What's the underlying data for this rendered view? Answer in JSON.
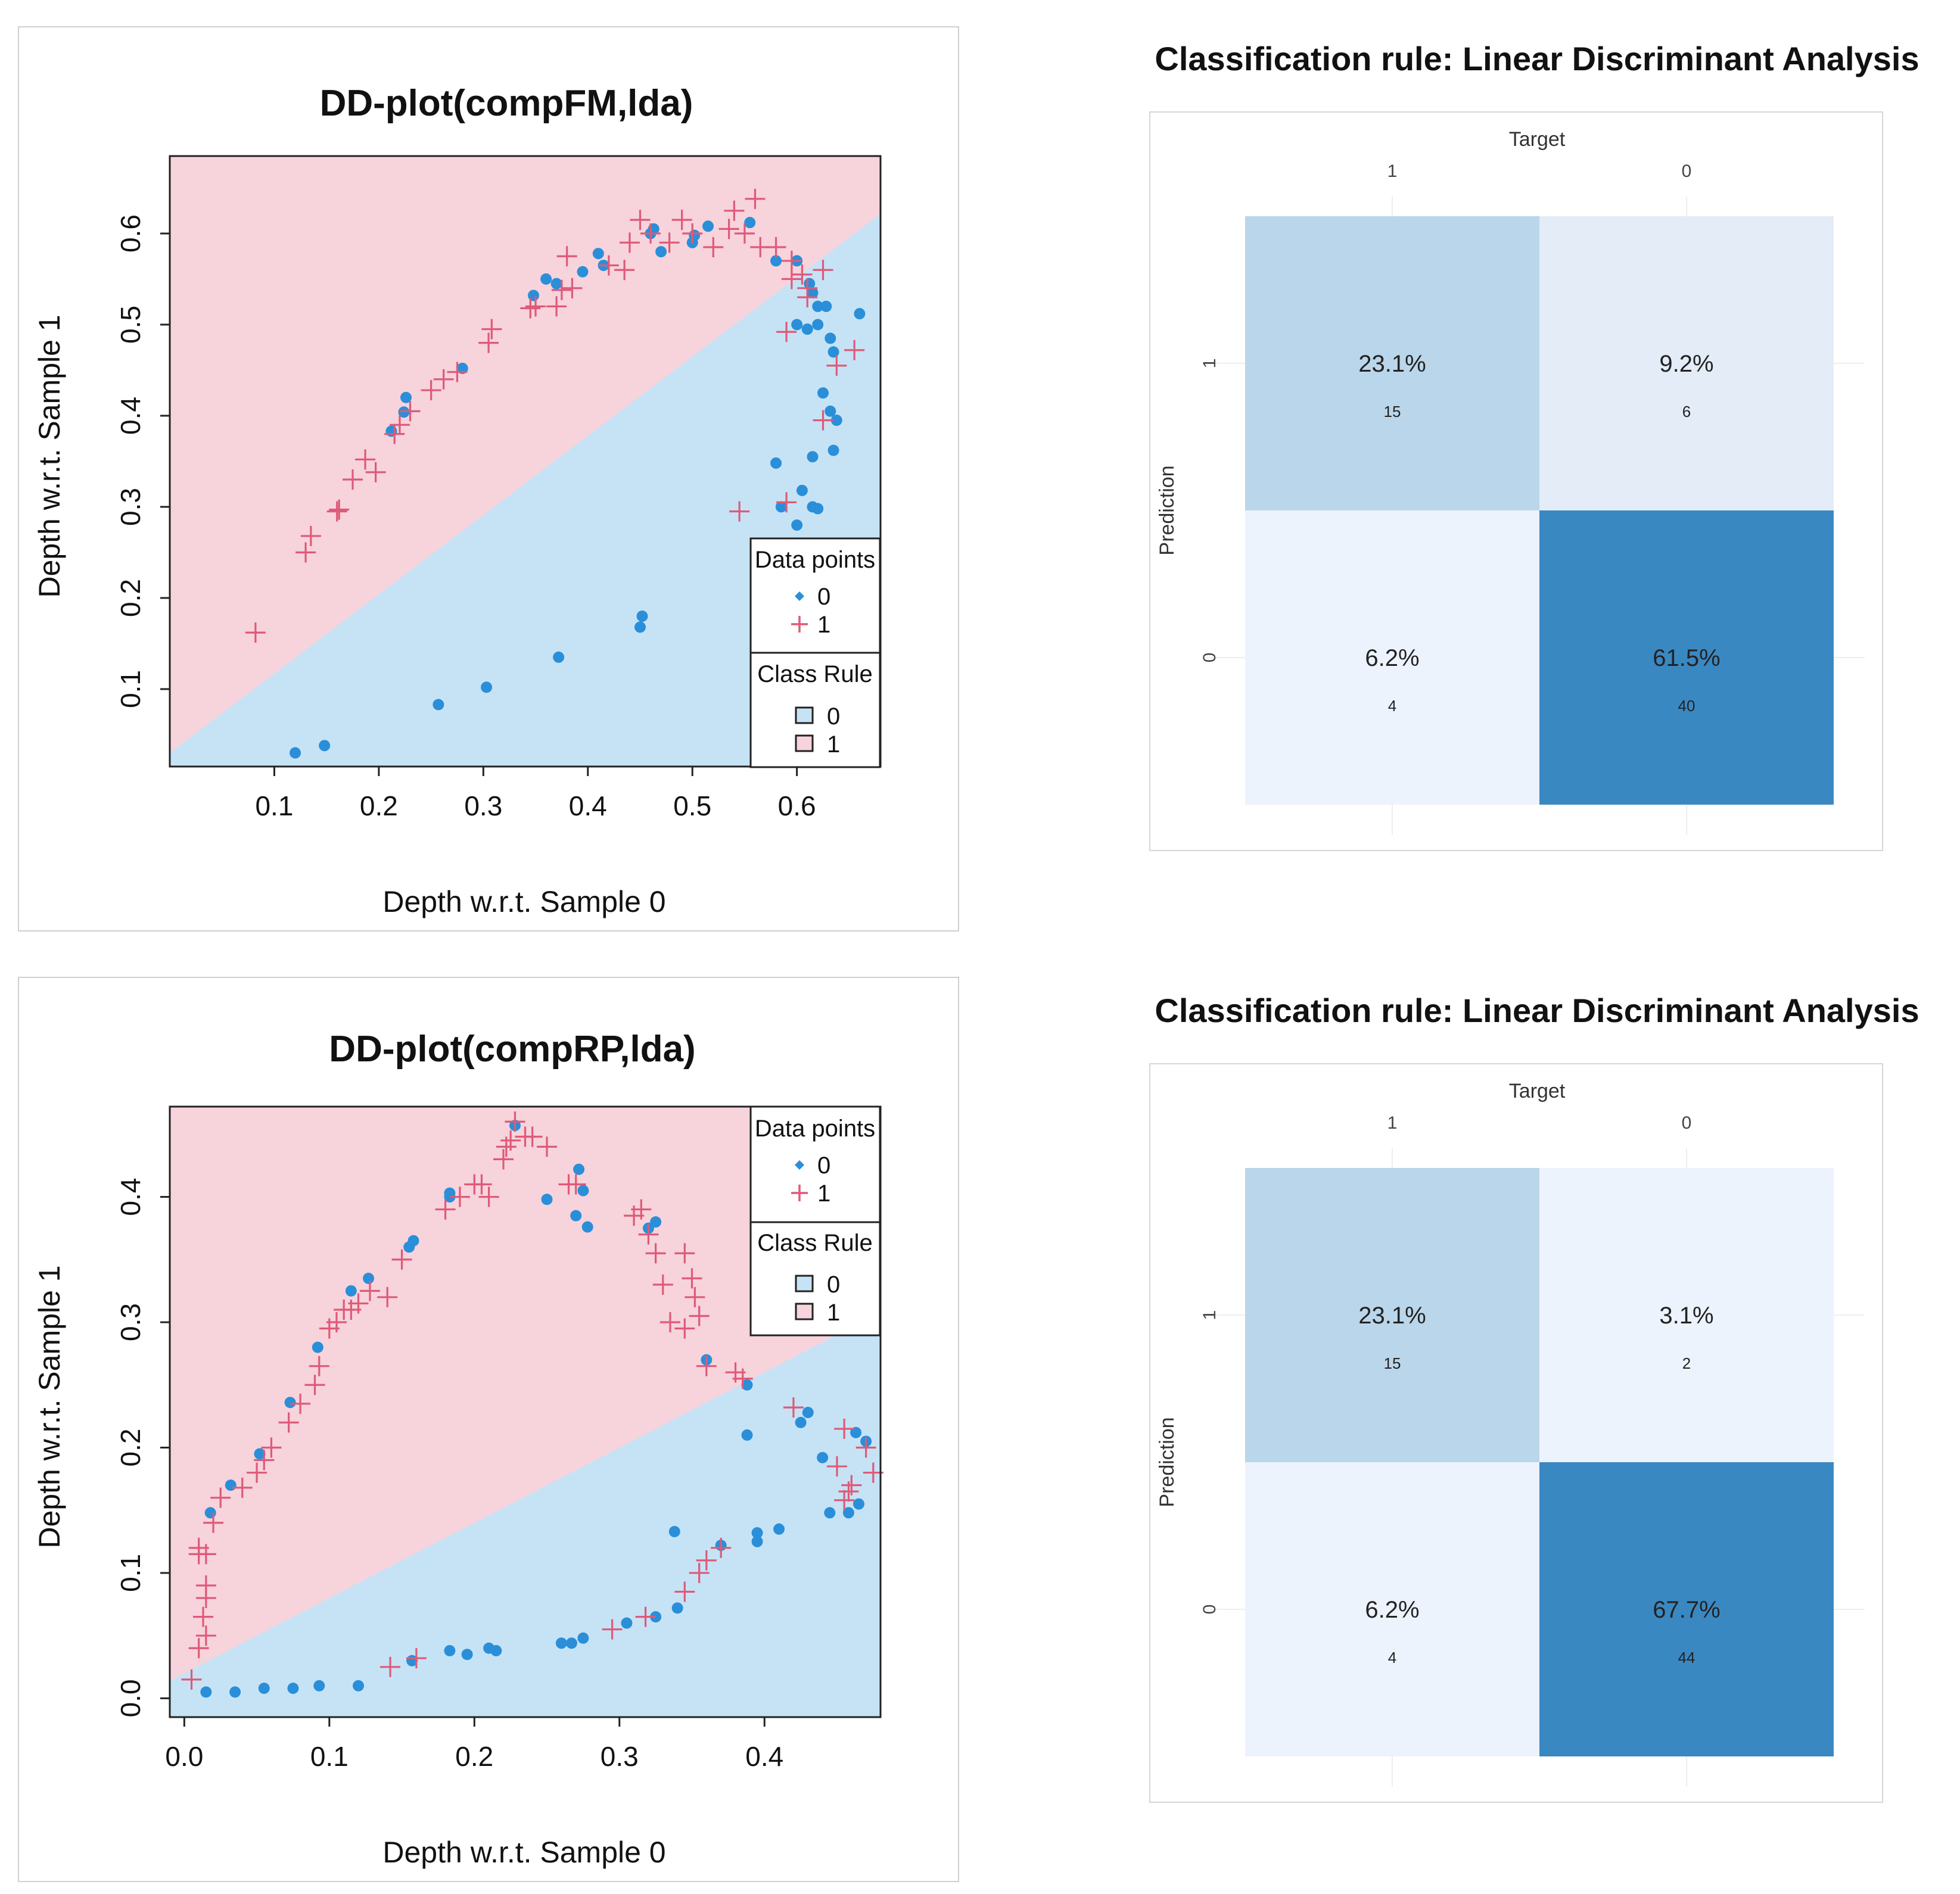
{
  "chart_data": [
    {
      "type": "scatter",
      "title": "DD-plot(compFM,lda)",
      "xlabel": "Depth w.r.t. Sample 0",
      "ylabel": "Depth w.r.t. Sample 1",
      "xlim": [
        0.0,
        0.68
      ],
      "ylim": [
        0.015,
        0.685
      ],
      "xticks": [
        "0.1",
        "0.2",
        "0.3",
        "0.4",
        "0.5",
        "0.6"
      ],
      "xtick_values": [
        0.1,
        0.2,
        0.3,
        0.4,
        0.5,
        0.6
      ],
      "yticks": [
        "0.1",
        "0.2",
        "0.3",
        "0.4",
        "0.5",
        "0.6"
      ],
      "ytick_values": [
        0.1,
        0.2,
        0.3,
        0.4,
        0.5,
        0.6
      ],
      "boundary": {
        "intercept": 0.03,
        "slope": 0.87
      },
      "colors": {
        "region0": "#c6e3f6",
        "region1": "#f7d3dc",
        "points0": "#2a8fd8",
        "points1": "#de5a78"
      },
      "legend": {
        "position": "bottom-right",
        "data_title": "Data points",
        "data_items": [
          "0",
          "1"
        ],
        "rule_title": "Class Rule",
        "rule_items": [
          "0",
          "1"
        ]
      },
      "series": [
        {
          "name": "0",
          "marker": "dot",
          "points": [
            [
              0.12,
              0.03
            ],
            [
              0.148,
              0.038
            ],
            [
              0.257,
              0.083
            ],
            [
              0.303,
              0.102
            ],
            [
              0.372,
              0.135
            ],
            [
              0.45,
              0.168
            ],
            [
              0.452,
              0.18
            ],
            [
              0.212,
              0.383
            ],
            [
              0.224,
              0.404
            ],
            [
              0.226,
              0.42
            ],
            [
              0.28,
              0.452
            ],
            [
              0.348,
              0.532
            ],
            [
              0.36,
              0.55
            ],
            [
              0.37,
              0.545
            ],
            [
              0.395,
              0.558
            ],
            [
              0.41,
              0.578
            ],
            [
              0.415,
              0.565
            ],
            [
              0.46,
              0.6
            ],
            [
              0.463,
              0.605
            ],
            [
              0.47,
              0.58
            ],
            [
              0.5,
              0.59
            ],
            [
              0.502,
              0.598
            ],
            [
              0.515,
              0.608
            ],
            [
              0.555,
              0.612
            ],
            [
              0.58,
              0.57
            ],
            [
              0.6,
              0.57
            ],
            [
              0.6,
              0.5
            ],
            [
              0.61,
              0.495
            ],
            [
              0.612,
              0.545
            ],
            [
              0.615,
              0.535
            ],
            [
              0.62,
              0.52
            ],
            [
              0.62,
              0.5
            ],
            [
              0.625,
              0.425
            ],
            [
              0.628,
              0.52
            ],
            [
              0.632,
              0.485
            ],
            [
              0.635,
              0.47
            ],
            [
              0.632,
              0.405
            ],
            [
              0.638,
              0.395
            ],
            [
              0.635,
              0.362
            ],
            [
              0.615,
              0.355
            ],
            [
              0.58,
              0.348
            ],
            [
              0.605,
              0.318
            ],
            [
              0.585,
              0.3
            ],
            [
              0.615,
              0.3
            ],
            [
              0.62,
              0.298
            ],
            [
              0.6,
              0.28
            ],
            [
              0.66,
              0.512
            ]
          ]
        },
        {
          "name": "1",
          "marker": "plus",
          "points": [
            [
              0.082,
              0.162
            ],
            [
              0.13,
              0.25
            ],
            [
              0.135,
              0.268
            ],
            [
              0.16,
              0.295
            ],
            [
              0.162,
              0.297
            ],
            [
              0.175,
              0.33
            ],
            [
              0.187,
              0.352
            ],
            [
              0.197,
              0.338
            ],
            [
              0.215,
              0.38
            ],
            [
              0.22,
              0.39
            ],
            [
              0.23,
              0.405
            ],
            [
              0.25,
              0.428
            ],
            [
              0.262,
              0.44
            ],
            [
              0.275,
              0.448
            ],
            [
              0.305,
              0.48
            ],
            [
              0.308,
              0.495
            ],
            [
              0.345,
              0.518
            ],
            [
              0.35,
              0.52
            ],
            [
              0.37,
              0.52
            ],
            [
              0.375,
              0.538
            ],
            [
              0.38,
              0.575
            ],
            [
              0.385,
              0.54
            ],
            [
              0.42,
              0.565
            ],
            [
              0.435,
              0.56
            ],
            [
              0.44,
              0.59
            ],
            [
              0.45,
              0.615
            ],
            [
              0.46,
              0.6
            ],
            [
              0.478,
              0.59
            ],
            [
              0.49,
              0.615
            ],
            [
              0.5,
              0.6
            ],
            [
              0.52,
              0.585
            ],
            [
              0.535,
              0.605
            ],
            [
              0.54,
              0.625
            ],
            [
              0.55,
              0.6
            ],
            [
              0.56,
              0.638
            ],
            [
              0.565,
              0.585
            ],
            [
              0.58,
              0.585
            ],
            [
              0.595,
              0.57
            ],
            [
              0.605,
              0.555
            ],
            [
              0.61,
              0.54
            ],
            [
              0.595,
              0.55
            ],
            [
              0.61,
              0.53
            ],
            [
              0.625,
              0.56
            ],
            [
              0.59,
              0.492
            ],
            [
              0.625,
              0.395
            ],
            [
              0.638,
              0.455
            ],
            [
              0.655,
              0.472
            ],
            [
              0.545,
              0.295
            ],
            [
              0.59,
              0.305
            ]
          ]
        }
      ]
    },
    {
      "type": "table",
      "title": "Classification rule: Linear Discriminant Analysis",
      "col_header": "Target",
      "row_header": "Prediction",
      "col_labels": [
        "1",
        "0"
      ],
      "row_labels": [
        "1",
        "0"
      ],
      "cells": [
        [
          {
            "pct": "23.1%",
            "count": "15",
            "color": "#bad6ea"
          },
          {
            "pct": "9.2%",
            "count": "6",
            "color": "#e4ecf8"
          }
        ],
        [
          {
            "pct": "6.2%",
            "count": "4",
            "color": "#edf3fc"
          },
          {
            "pct": "61.5%",
            "count": "40",
            "color": "#3a88c2"
          }
        ]
      ]
    },
    {
      "type": "scatter",
      "title": "DD-plot(compRP,lda)",
      "xlabel": "Depth w.r.t. Sample 0",
      "ylabel": "Depth w.r.t. Sample 1",
      "xlim": [
        -0.01,
        0.48
      ],
      "ylim": [
        -0.015,
        0.472
      ],
      "xticks": [
        "0.0",
        "0.1",
        "0.2",
        "0.3",
        "0.4"
      ],
      "xtick_values": [
        0.0,
        0.1,
        0.2,
        0.3,
        0.4
      ],
      "yticks": [
        "0.0",
        "0.1",
        "0.2",
        "0.3",
        "0.4"
      ],
      "ytick_values": [
        0.0,
        0.1,
        0.2,
        0.3,
        0.4
      ],
      "boundary": {
        "intercept": 0.02,
        "slope": 0.6
      },
      "colors": {
        "region0": "#c6e3f6",
        "region1": "#f7d3dc",
        "points0": "#2a8fd8",
        "points1": "#de5a78"
      },
      "legend": {
        "position": "top-right",
        "data_title": "Data points",
        "data_items": [
          "0",
          "1"
        ],
        "rule_title": "Class Rule",
        "rule_items": [
          "0",
          "1"
        ]
      },
      "series": [
        {
          "name": "0",
          "marker": "dot",
          "points": [
            [
              0.015,
              0.005
            ],
            [
              0.035,
              0.005
            ],
            [
              0.055,
              0.008
            ],
            [
              0.075,
              0.008
            ],
            [
              0.093,
              0.01
            ],
            [
              0.12,
              0.01
            ],
            [
              0.157,
              0.03
            ],
            [
              0.183,
              0.038
            ],
            [
              0.195,
              0.035
            ],
            [
              0.21,
              0.04
            ],
            [
              0.215,
              0.038
            ],
            [
              0.26,
              0.044
            ],
            [
              0.267,
              0.044
            ],
            [
              0.275,
              0.048
            ],
            [
              0.305,
              0.06
            ],
            [
              0.325,
              0.065
            ],
            [
              0.34,
              0.072
            ],
            [
              0.37,
              0.122
            ],
            [
              0.395,
              0.125
            ],
            [
              0.41,
              0.135
            ],
            [
              0.338,
              0.133
            ],
            [
              0.395,
              0.132
            ],
            [
              0.445,
              0.148
            ],
            [
              0.458,
              0.148
            ],
            [
              0.465,
              0.155
            ],
            [
              0.44,
              0.192
            ],
            [
              0.388,
              0.21
            ],
            [
              0.425,
              0.22
            ],
            [
              0.43,
              0.228
            ],
            [
              0.388,
              0.25
            ],
            [
              0.36,
              0.27
            ],
            [
              0.47,
              0.205
            ],
            [
              0.463,
              0.212
            ],
            [
              0.018,
              0.148
            ],
            [
              0.032,
              0.17
            ],
            [
              0.052,
              0.195
            ],
            [
              0.073,
              0.236
            ],
            [
              0.092,
              0.28
            ],
            [
              0.115,
              0.325
            ],
            [
              0.127,
              0.335
            ],
            [
              0.155,
              0.36
            ],
            [
              0.158,
              0.365
            ],
            [
              0.183,
              0.4
            ],
            [
              0.183,
              0.403
            ],
            [
              0.228,
              0.457
            ],
            [
              0.25,
              0.398
            ],
            [
              0.272,
              0.422
            ],
            [
              0.275,
              0.405
            ],
            [
              0.27,
              0.385
            ],
            [
              0.278,
              0.376
            ],
            [
              0.32,
              0.375
            ],
            [
              0.325,
              0.38
            ]
          ]
        },
        {
          "name": "1",
          "marker": "plus",
          "points": [
            [
              0.005,
              0.015
            ],
            [
              0.01,
              0.04
            ],
            [
              0.015,
              0.05
            ],
            [
              0.013,
              0.065
            ],
            [
              0.015,
              0.08
            ],
            [
              0.015,
              0.09
            ],
            [
              0.01,
              0.115
            ],
            [
              0.015,
              0.115
            ],
            [
              0.01,
              0.12
            ],
            [
              0.02,
              0.14
            ],
            [
              0.025,
              0.16
            ],
            [
              0.04,
              0.168
            ],
            [
              0.05,
              0.18
            ],
            [
              0.055,
              0.19
            ],
            [
              0.06,
              0.2
            ],
            [
              0.072,
              0.22
            ],
            [
              0.08,
              0.235
            ],
            [
              0.09,
              0.25
            ],
            [
              0.093,
              0.265
            ],
            [
              0.1,
              0.295
            ],
            [
              0.105,
              0.3
            ],
            [
              0.11,
              0.31
            ],
            [
              0.115,
              0.31
            ],
            [
              0.12,
              0.315
            ],
            [
              0.128,
              0.325
            ],
            [
              0.14,
              0.32
            ],
            [
              0.15,
              0.35
            ],
            [
              0.18,
              0.39
            ],
            [
              0.19,
              0.4
            ],
            [
              0.2,
              0.41
            ],
            [
              0.205,
              0.41
            ],
            [
              0.21,
              0.4
            ],
            [
              0.22,
              0.43
            ],
            [
              0.222,
              0.44
            ],
            [
              0.225,
              0.445
            ],
            [
              0.228,
              0.46
            ],
            [
              0.235,
              0.448
            ],
            [
              0.24,
              0.448
            ],
            [
              0.25,
              0.44
            ],
            [
              0.265,
              0.41
            ],
            [
              0.27,
              0.41
            ],
            [
              0.31,
              0.385
            ],
            [
              0.315,
              0.39
            ],
            [
              0.32,
              0.37
            ],
            [
              0.325,
              0.355
            ],
            [
              0.33,
              0.33
            ],
            [
              0.335,
              0.3
            ],
            [
              0.345,
              0.355
            ],
            [
              0.345,
              0.295
            ],
            [
              0.35,
              0.335
            ],
            [
              0.352,
              0.32
            ],
            [
              0.355,
              0.305
            ],
            [
              0.36,
              0.265
            ],
            [
              0.38,
              0.26
            ],
            [
              0.385,
              0.255
            ],
            [
              0.42,
              0.232
            ],
            [
              0.45,
              0.185
            ],
            [
              0.455,
              0.215
            ],
            [
              0.458,
              0.165
            ],
            [
              0.46,
              0.17
            ],
            [
              0.47,
              0.2
            ],
            [
              0.475,
              0.18
            ],
            [
              0.455,
              0.158
            ],
            [
              0.142,
              0.025
            ],
            [
              0.16,
              0.032
            ],
            [
              0.295,
              0.055
            ],
            [
              0.318,
              0.065
            ],
            [
              0.345,
              0.085
            ],
            [
              0.355,
              0.1
            ],
            [
              0.36,
              0.11
            ],
            [
              0.37,
              0.12
            ]
          ]
        }
      ]
    },
    {
      "type": "table",
      "title": "Classification rule: Linear Discriminant Analysis",
      "col_header": "Target",
      "row_header": "Prediction",
      "col_labels": [
        "1",
        "0"
      ],
      "row_labels": [
        "1",
        "0"
      ],
      "cells": [
        [
          {
            "pct": "23.1%",
            "count": "15",
            "color": "#bad6ea"
          },
          {
            "pct": "3.1%",
            "count": "2",
            "color": "#edf3fc"
          }
        ],
        [
          {
            "pct": "6.2%",
            "count": "4",
            "color": "#edf3fc"
          },
          {
            "pct": "67.7%",
            "count": "44",
            "color": "#3a88c2"
          }
        ]
      ]
    }
  ]
}
